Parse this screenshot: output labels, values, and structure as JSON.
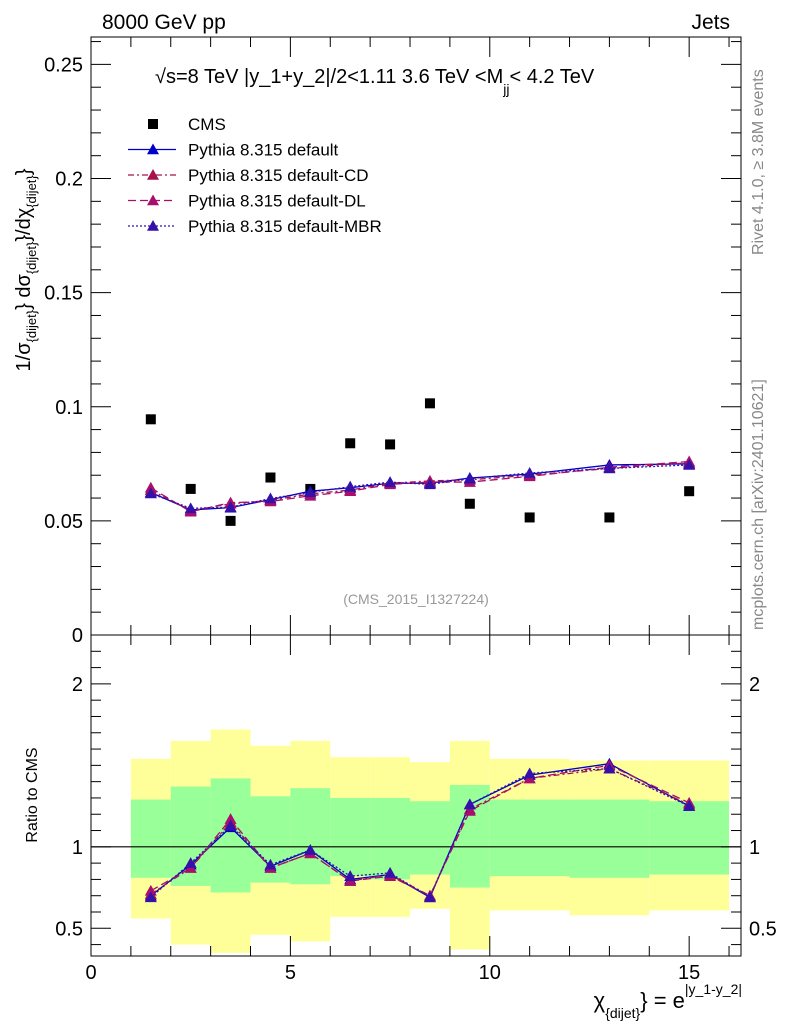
{
  "header": {
    "energy_label": "8000 GeV pp",
    "process_label": "Jets",
    "rivet_label": "Rivet 4.1.0, ≥ 3.8M events",
    "mcplots_label": "mcplots.cern.ch [arXiv:2401.10621]",
    "analysis_label": "(CMS_2015_I1327224)"
  },
  "chart_data": [
    {
      "type": "scatter",
      "panel": "main",
      "title": "√s=8 TeV |y_1+y_2|/2<1.11 3.6 TeV <M_jj< 4.2 TeV",
      "title_parts": {
        "prefix": "√s=8 TeV |y_1+y_2|/2<1.11 3.6 TeV <M",
        "sub": "jj",
        "suffix": "< 4.2 TeV"
      },
      "ylabel": "1/σ_{dijet} dσ_{dijet}/dχ_{dijet}",
      "ylabel_parts": {
        "a": "1/σ",
        "a_sub": "{dijet}",
        "b": "} dσ",
        "b_sub": "{dijet}",
        "c": "}/dχ",
        "c_sub": "{dijet}",
        "d": "}"
      },
      "xlim": [
        0,
        16.3
      ],
      "ylim": [
        0,
        0.262
      ],
      "yticks": [
        0,
        0.05,
        0.1,
        0.15,
        0.2,
        0.25
      ],
      "ytick_labels": [
        "0",
        "0.05",
        "0.1",
        "0.15",
        "0.2",
        "0.25"
      ],
      "legend_position": "top-left",
      "series": [
        {
          "name": "CMS",
          "marker": "square",
          "color": "#000000",
          "x": [
            1.5,
            2.5,
            3.5,
            4.5,
            5.5,
            6.5,
            7.5,
            8.5,
            9.5,
            11,
            13,
            15
          ],
          "y": [
            0.0945,
            0.064,
            0.05,
            0.069,
            0.064,
            0.084,
            0.0835,
            0.1015,
            0.0575,
            0.0515,
            0.0515,
            0.063
          ]
        },
        {
          "name": "Pythia 8.315 default",
          "marker": "triangle",
          "color": "#0000cc",
          "dash": "solid",
          "x": [
            1.5,
            2.5,
            3.5,
            4.5,
            5.5,
            6.5,
            7.5,
            8.5,
            9.5,
            11,
            13,
            15
          ],
          "y": [
            0.0625,
            0.0548,
            0.0558,
            0.0593,
            0.063,
            0.0645,
            0.0665,
            0.0665,
            0.0688,
            0.0705,
            0.0745,
            0.075
          ]
        },
        {
          "name": "Pythia 8.315 default-CD",
          "marker": "triangle",
          "color": "#a8124a",
          "dash": "6 3 2 3",
          "x": [
            1.5,
            2.5,
            3.5,
            4.5,
            5.5,
            6.5,
            7.5,
            8.5,
            9.5,
            11,
            13,
            15
          ],
          "y": [
            0.0635,
            0.0545,
            0.0575,
            0.059,
            0.0618,
            0.0635,
            0.0665,
            0.0675,
            0.068,
            0.07,
            0.073,
            0.0755
          ]
        },
        {
          "name": "Pythia 8.315 default-DL",
          "marker": "triangle",
          "color": "#a80f6c",
          "dash": "8 4",
          "x": [
            1.5,
            2.5,
            3.5,
            4.5,
            5.5,
            6.5,
            7.5,
            8.5,
            9.5,
            11,
            13,
            15
          ],
          "y": [
            0.0645,
            0.054,
            0.058,
            0.0585,
            0.061,
            0.063,
            0.066,
            0.067,
            0.067,
            0.0695,
            0.0735,
            0.076
          ]
        },
        {
          "name": "Pythia 8.315 default-MBR",
          "marker": "triangle",
          "color": "#3311aa",
          "dash": "2 2",
          "x": [
            1.5,
            2.5,
            3.5,
            4.5,
            5.5,
            6.5,
            7.5,
            8.5,
            9.5,
            11,
            13,
            15
          ],
          "y": [
            0.062,
            0.0555,
            0.056,
            0.0598,
            0.0625,
            0.065,
            0.067,
            0.066,
            0.0685,
            0.071,
            0.073,
            0.0745
          ]
        }
      ]
    },
    {
      "type": "line",
      "panel": "ratio",
      "ylabel": "Ratio to CMS",
      "xlabel": "χ_{dijet}} = e^{|y_1-y_2|}",
      "xlabel_parts": {
        "a": "χ",
        "a_sub": "{dijet}",
        "b": "} = e",
        "sup": "|y_1-y_2|"
      },
      "xlim": [
        0,
        16.3
      ],
      "ylim": [
        0.33,
        2.3
      ],
      "xticks": [
        0,
        5,
        10,
        15
      ],
      "xtick_labels": [
        "0",
        "5",
        "10",
        "15"
      ],
      "yticks": [
        0.5,
        1,
        2
      ],
      "ytick_labels": [
        "0.5",
        "1",
        "2"
      ],
      "reference_line": 1,
      "bins": [
        {
          "lo": 1,
          "hi": 2,
          "g_lo": 0.81,
          "g_hi": 1.29,
          "y_lo": 0.56,
          "y_hi": 1.54
        },
        {
          "lo": 2,
          "hi": 3,
          "g_lo": 0.76,
          "g_hi": 1.37,
          "y_lo": 0.4,
          "y_hi": 1.65
        },
        {
          "lo": 3,
          "hi": 4,
          "g_lo": 0.72,
          "g_hi": 1.42,
          "y_lo": 0.35,
          "y_hi": 1.72
        },
        {
          "lo": 4,
          "hi": 5,
          "g_lo": 0.78,
          "g_hi": 1.31,
          "y_lo": 0.46,
          "y_hi": 1.62
        },
        {
          "lo": 5,
          "hi": 6,
          "g_lo": 0.77,
          "g_hi": 1.36,
          "y_lo": 0.42,
          "y_hi": 1.65
        },
        {
          "lo": 6,
          "hi": 7,
          "g_lo": 0.82,
          "g_hi": 1.3,
          "y_lo": 0.57,
          "y_hi": 1.55
        },
        {
          "lo": 7,
          "hi": 8,
          "g_lo": 0.8,
          "g_hi": 1.3,
          "y_lo": 0.57,
          "y_hi": 1.55
        },
        {
          "lo": 8,
          "hi": 9,
          "g_lo": 0.83,
          "g_hi": 1.28,
          "y_lo": 0.62,
          "y_hi": 1.52
        },
        {
          "lo": 9,
          "hi": 10,
          "g_lo": 0.75,
          "g_hi": 1.38,
          "y_lo": 0.37,
          "y_hi": 1.65
        },
        {
          "lo": 10,
          "hi": 12,
          "g_lo": 0.82,
          "g_hi": 1.29,
          "y_lo": 0.61,
          "y_hi": 1.54
        },
        {
          "lo": 12,
          "hi": 14,
          "g_lo": 0.81,
          "g_hi": 1.29,
          "y_lo": 0.58,
          "y_hi": 1.53
        },
        {
          "lo": 14,
          "hi": 16,
          "g_lo": 0.83,
          "g_hi": 1.28,
          "y_lo": 0.61,
          "y_hi": 1.53
        }
      ],
      "band_colors": {
        "inner": "#99ff99",
        "outer": "#ffff99"
      },
      "series": [
        {
          "name": "Pythia 8.315 default",
          "color": "#0000cc",
          "dash": "solid",
          "x": [
            1.5,
            2.5,
            3.5,
            4.5,
            5.5,
            6.5,
            7.5,
            8.5,
            9.5,
            11,
            13,
            15
          ],
          "y": [
            0.7,
            0.89,
            1.12,
            0.88,
            0.98,
            0.8,
            0.83,
            0.69,
            1.26,
            1.44,
            1.51,
            1.25
          ]
        },
        {
          "name": "Pythia 8.315 default-CD",
          "color": "#a8124a",
          "dash": "6 3 2 3",
          "x": [
            1.5,
            2.5,
            3.5,
            4.5,
            5.5,
            6.5,
            7.5,
            8.5,
            9.5,
            11,
            13,
            15
          ],
          "y": [
            0.71,
            0.87,
            1.15,
            0.87,
            0.96,
            0.79,
            0.83,
            0.7,
            1.23,
            1.42,
            1.48,
            1.26
          ]
        },
        {
          "name": "Pythia 8.315 default-DL",
          "color": "#a80f6c",
          "dash": "8 4",
          "x": [
            1.5,
            2.5,
            3.5,
            4.5,
            5.5,
            6.5,
            7.5,
            8.5,
            9.5,
            11,
            13,
            15
          ],
          "y": [
            0.73,
            0.87,
            1.17,
            0.87,
            0.96,
            0.79,
            0.82,
            0.7,
            1.22,
            1.42,
            1.5,
            1.27
          ]
        },
        {
          "name": "Pythia 8.315 default-MBR",
          "color": "#3311aa",
          "dash": "2 2",
          "x": [
            1.5,
            2.5,
            3.5,
            4.5,
            5.5,
            6.5,
            7.5,
            8.5,
            9.5,
            11,
            13,
            15
          ],
          "y": [
            0.69,
            0.9,
            1.13,
            0.89,
            0.98,
            0.82,
            0.84,
            0.69,
            1.26,
            1.45,
            1.48,
            1.25
          ]
        }
      ]
    }
  ]
}
